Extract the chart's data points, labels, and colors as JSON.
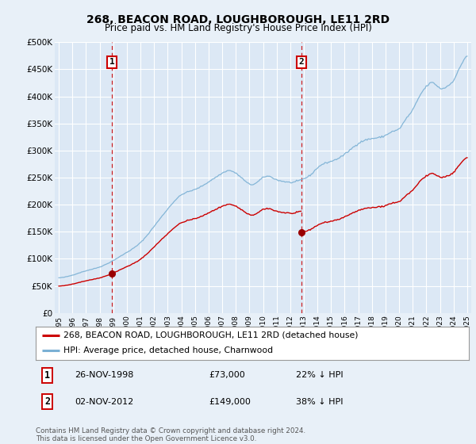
{
  "title": "268, BEACON ROAD, LOUGHBOROUGH, LE11 2RD",
  "subtitle": "Price paid vs. HM Land Registry's House Price Index (HPI)",
  "background_color": "#e8f0f8",
  "plot_bg_color": "#dce8f5",
  "grid_color": "#c8d8e8",
  "ylim": [
    0,
    500000
  ],
  "yticks": [
    0,
    50000,
    100000,
    150000,
    200000,
    250000,
    300000,
    350000,
    400000,
    450000,
    500000
  ],
  "ytick_labels": [
    "£0",
    "£50K",
    "£100K",
    "£150K",
    "£200K",
    "£250K",
    "£300K",
    "£350K",
    "£400K",
    "£450K",
    "£500K"
  ],
  "sale1_date": 1998.9,
  "sale1_price": 73000,
  "sale2_date": 2012.84,
  "sale2_price": 149000,
  "red_line_color": "#cc0000",
  "blue_line_color": "#7ab0d4",
  "marker_color": "#990000",
  "dashed_line_color": "#cc0000",
  "legend_label_red": "268, BEACON ROAD, LOUGHBOROUGH, LE11 2RD (detached house)",
  "legend_label_blue": "HPI: Average price, detached house, Charnwood",
  "footnote": "Contains HM Land Registry data © Crown copyright and database right 2024.\nThis data is licensed under the Open Government Licence v3.0.",
  "xlim_start": 1994.7,
  "xlim_end": 2025.3
}
